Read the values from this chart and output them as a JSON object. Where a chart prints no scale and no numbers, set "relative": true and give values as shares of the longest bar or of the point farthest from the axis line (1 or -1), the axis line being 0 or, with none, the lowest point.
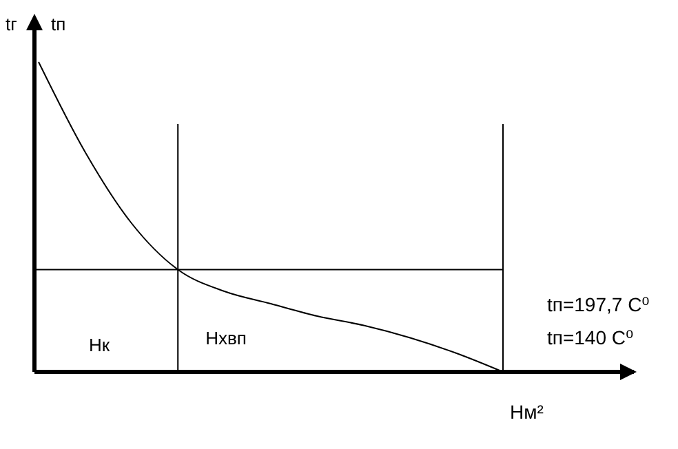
{
  "chart_data": {
    "type": "line",
    "relative": true,
    "ylabel": "tг",
    "xlabel": "Нм²",
    "categories": [
      null,
      null,
      null,
      null,
      null,
      null,
      null,
      null,
      null,
      null,
      null
    ],
    "series": [
      {
        "color": "#000000",
        "values": [
          1,
          0.71,
          0.48,
          0.33,
          0.26,
          0.22,
          0.18,
          0.15,
          0.11,
          0.06,
          0
        ]
      }
    ],
    "ref_lines": [
      {
        "axis": "y",
        "value": 0.33,
        "color": "#000000"
      }
    ],
    "annotations": [
      "tп",
      "Нк",
      "Нхвп",
      "tп=197,7 С⁰",
      "tп=140 С⁰"
    ],
    "marker": "none",
    "line_style": "solid"
  }
}
